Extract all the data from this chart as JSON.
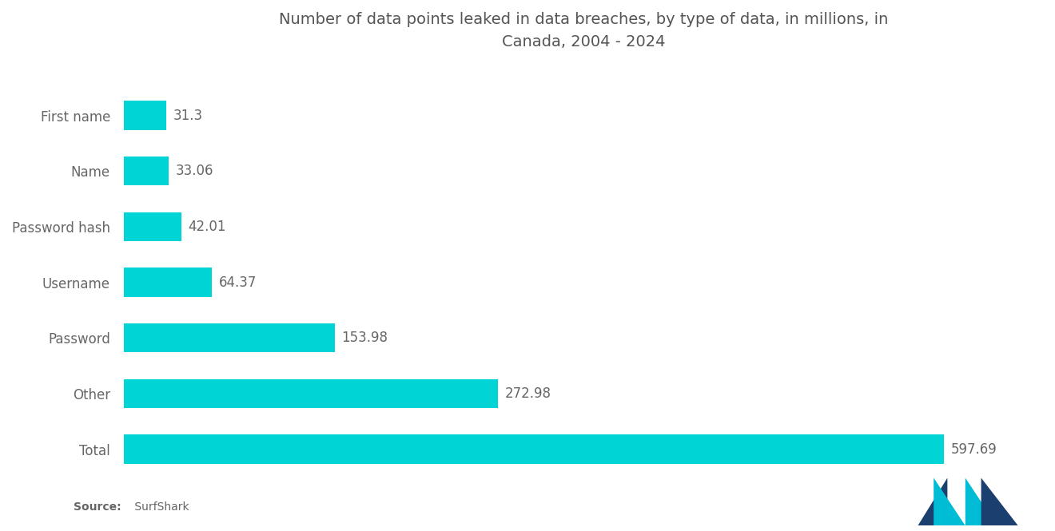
{
  "title": "Number of data points leaked in data breaches, by type of data, in millions, in\nCanada, 2004 - 2024",
  "categories": [
    "First name",
    "Name",
    "Password hash",
    "Username",
    "Password",
    "Other",
    "Total"
  ],
  "values": [
    31.3,
    33.06,
    42.01,
    64.37,
    153.98,
    272.98,
    597.69
  ],
  "bar_color": "#00D4D4",
  "label_color": "#666666",
  "title_color": "#555555",
  "source_bold": "Source:",
  "source_normal": " SurfShark",
  "background_color": "#ffffff",
  "xlim": [
    0,
    670
  ],
  "bar_height": 0.52,
  "value_labels": [
    "31.3",
    "33.06",
    "42.01",
    "64.37",
    "153.98",
    "272.98",
    "597.69"
  ],
  "logo_dark": "#1B3F6E",
  "logo_teal": "#00BCD4"
}
